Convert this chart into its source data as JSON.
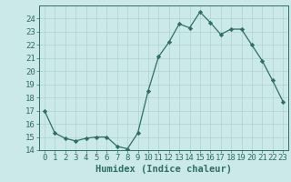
{
  "x": [
    0,
    1,
    2,
    3,
    4,
    5,
    6,
    7,
    8,
    9,
    10,
    11,
    12,
    13,
    14,
    15,
    16,
    17,
    18,
    19,
    20,
    21,
    22,
    23
  ],
  "y": [
    17.0,
    15.3,
    14.9,
    14.7,
    14.9,
    15.0,
    15.0,
    14.3,
    14.1,
    15.3,
    18.5,
    21.1,
    22.2,
    23.6,
    23.3,
    24.5,
    23.7,
    22.8,
    23.2,
    23.2,
    22.0,
    20.8,
    19.3,
    17.7
  ],
  "line_color": "#2e6e65",
  "marker": "D",
  "marker_size": 2.2,
  "bg_color": "#cce9e9",
  "grid_color": "#b0d0d0",
  "xlabel": "Humidex (Indice chaleur)",
  "xlim": [
    -0.5,
    23.5
  ],
  "ylim": [
    14.0,
    25.0
  ],
  "yticks": [
    14,
    15,
    16,
    17,
    18,
    19,
    20,
    21,
    22,
    23,
    24
  ],
  "xtick_labels": [
    "0",
    "1",
    "2",
    "3",
    "4",
    "5",
    "6",
    "7",
    "8",
    "9",
    "10",
    "11",
    "12",
    "13",
    "14",
    "15",
    "16",
    "17",
    "18",
    "19",
    "20",
    "21",
    "22",
    "23"
  ],
  "tick_color": "#2e6e65",
  "label_color": "#2e6e65",
  "xlabel_fontsize": 7.5,
  "tick_fontsize": 6.5,
  "linewidth": 0.9
}
